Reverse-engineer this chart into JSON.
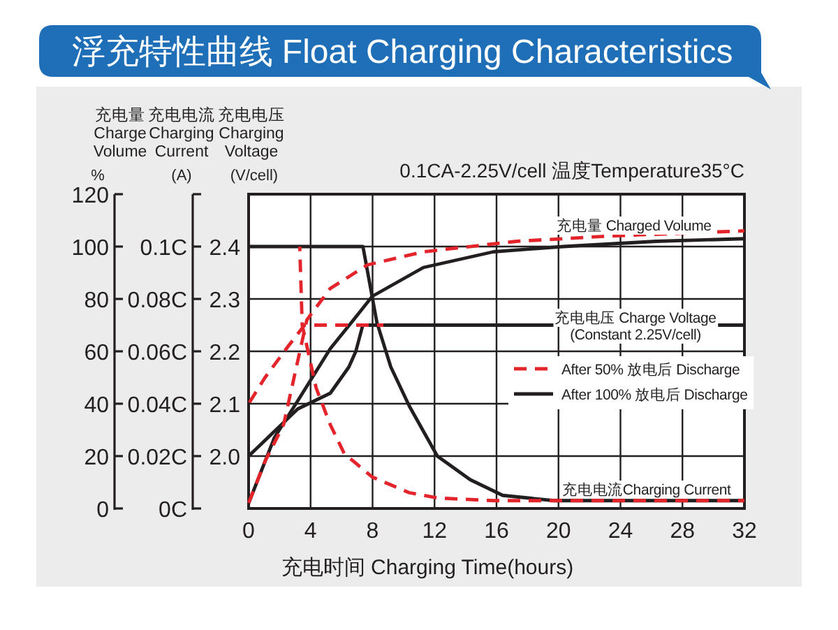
{
  "chart_data": {
    "type": "line",
    "title": "浮充特性曲线 Float Charging Characteristics",
    "subtitle": "0.1CA-2.25V/cell 温度Temperature35°C",
    "xlabel": "充电时间 Charging Time(hours)",
    "ylabel": "充电量 Charge Volume %",
    "y2label": "充电电流 Charging Current (A)",
    "y3label": "充电电压 Charging Voltage (V/cell)",
    "xlim": [
      0,
      32
    ],
    "xticks": [
      0,
      4,
      8,
      12,
      16,
      20,
      24,
      28,
      32
    ],
    "ylim": [
      0,
      120
    ],
    "yticks": [
      0,
      20,
      40,
      60,
      80,
      100,
      120
    ],
    "y2lim": [
      0,
      0.12
    ],
    "y2ticks": [
      {
        "value": 0,
        "label": "0C"
      },
      {
        "value": 0.02,
        "label": "0.02C"
      },
      {
        "value": 0.04,
        "label": "0.04C"
      },
      {
        "value": 0.06,
        "label": "0.06C"
      },
      {
        "value": 0.08,
        "label": "0.08C"
      },
      {
        "value": 0.1,
        "label": "0.1C"
      },
      {
        "value": 0.12,
        "label": null
      }
    ],
    "y3lim": [
      1.9,
      2.5
    ],
    "y3ticks": [
      {
        "value": 2,
        "label": "2.0"
      },
      2.1,
      2.2,
      2.3,
      2.4
    ],
    "grid": true,
    "legend": "right",
    "marker": "none",
    "series": [
      {
        "name": "After 50% 放电后 Discharge",
        "color": "#e3242b",
        "line_style": "dashed",
        "axis": "y3",
        "x": [
          0,
          1.06,
          2.56,
          3.61,
          8.7
        ],
        "values": [
          2.1,
          2.15,
          2.21,
          2.25,
          2.25
        ]
      },
      {
        "name": "After 100% 放电后 Discharge",
        "color": "#231f20",
        "line_style": "solid",
        "axis": "y3",
        "x": [
          0,
          1.06,
          3.17,
          5.27,
          6.47,
          6.92,
          7.37,
          32
        ],
        "values": [
          2.0,
          2.03,
          2.09,
          2.12,
          2.17,
          2.2,
          2.25,
          2.25
        ]
      },
      {
        "color": "#e3242b",
        "line_style": "dashed",
        "axis": "y2",
        "x": [
          3.3,
          3.46,
          4.36,
          5.27,
          6.17,
          7.98,
          10.38,
          12.2,
          15.8,
          32
        ],
        "values": [
          0.1,
          0.07,
          0.046,
          0.032,
          0.021,
          0.012,
          0.006,
          0.004,
          0.003,
          0.003
        ]
      },
      {
        "color": "#231f20",
        "line_style": "solid",
        "axis": "y2",
        "x": [
          0,
          7.38,
          8.28,
          9.18,
          10.38,
          12.18,
          14.3,
          16.4,
          19.7,
          26,
          32
        ],
        "values": [
          0.1,
          0.1,
          0.071,
          0.054,
          0.039,
          0.02,
          0.011,
          0.005,
          0.003,
          0.003,
          0.003
        ]
      },
      {
        "color": "#e3242b",
        "line_style": "dashed",
        "x": [
          0,
          1.06,
          2.26,
          3.46,
          3.76,
          5.27,
          7.67,
          11.28,
          17.3,
          23.3,
          32
        ],
        "values": [
          2,
          18,
          32,
          64,
          72,
          84,
          93,
          98,
          102,
          104,
          106
        ]
      },
      {
        "color": "#231f20",
        "line_style": "solid",
        "x": [
          0,
          1.66,
          3.16,
          5.27,
          6.77,
          7.98,
          11.28,
          15.8,
          20.3,
          26.3,
          32
        ],
        "values": [
          2,
          27,
          41,
          61,
          72,
          81,
          92,
          98,
          100,
          102,
          103
        ]
      }
    ],
    "annotations": [
      "充电量 Charged Volume",
      "充电电压 Charge Voltage",
      "(Constant 2.25V/cell)",
      "充电电流Charging Current"
    ]
  }
}
